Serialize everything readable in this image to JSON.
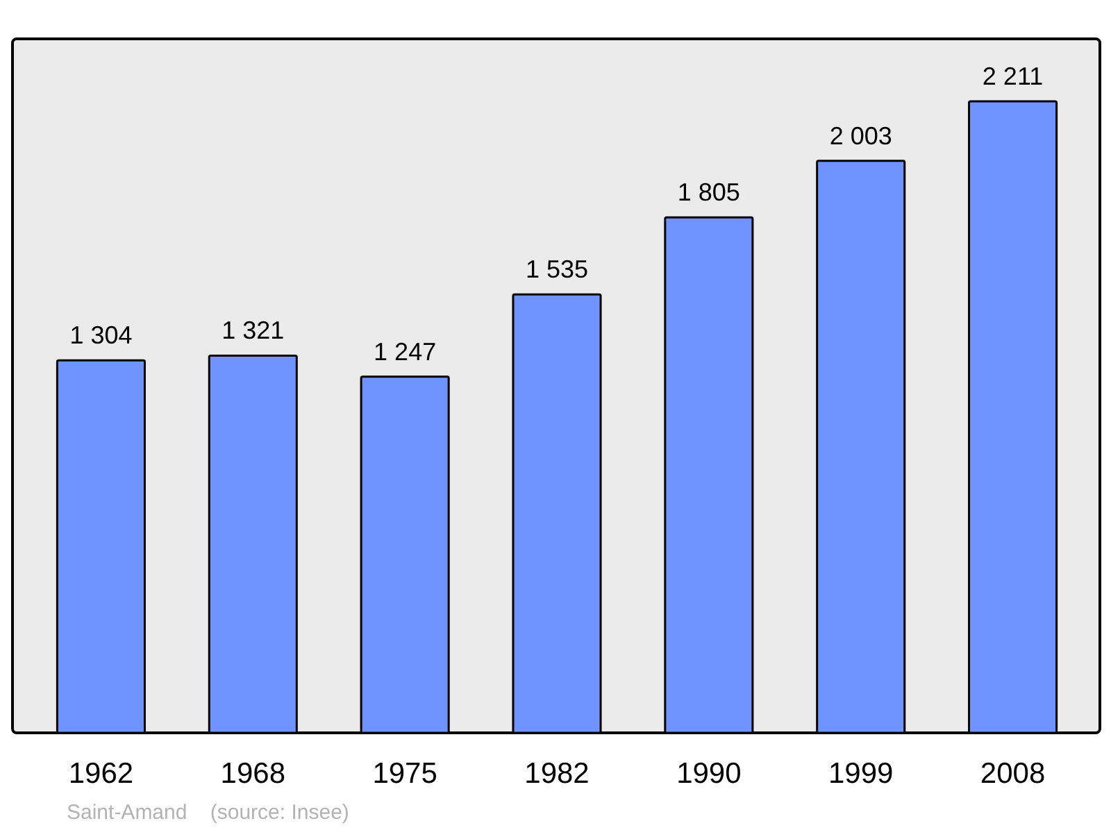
{
  "chart_data": {
    "type": "bar",
    "categories": [
      "1962",
      "1968",
      "1975",
      "1982",
      "1990",
      "1999",
      "2008"
    ],
    "values": [
      1304,
      1321,
      1247,
      1535,
      1805,
      2003,
      2211
    ],
    "value_labels": [
      "1 304",
      "1 321",
      "1 247",
      "1 535",
      "1 805",
      "2 003",
      "2 211"
    ],
    "color": "#7094ff",
    "ylim": [
      0,
      2430
    ],
    "tick_labels": "x",
    "annotations": [
      "Saint-Amand    (source: Insee)"
    ]
  }
}
